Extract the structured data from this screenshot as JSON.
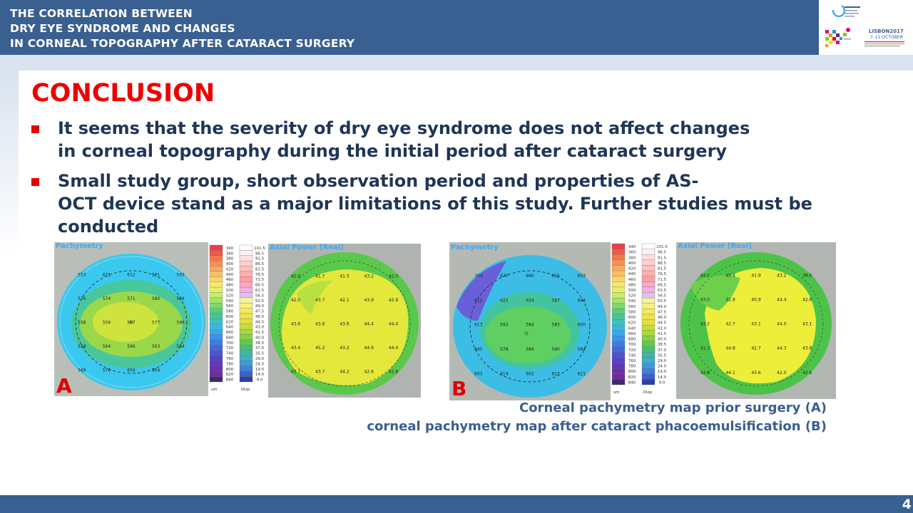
{
  "header": {
    "title_lines": [
      "THE CORRELATION BETWEEN",
      "DRY EYE SYNDROME AND CHANGES",
      "IN CORNEAL TOPOGRAPHY AFTER CATARACT SURGERY"
    ],
    "logo": {
      "lisbon": "LISBON2017",
      "dates": "7–11 OCTOBER"
    }
  },
  "main": {
    "heading": "CONCLUSION",
    "bullets": [
      {
        "lines": [
          "It seems that the severity of dry eye syndrome does not affect changes",
          "in corneal topography during the initial period after cataract surgery"
        ]
      },
      {
        "lines": [
          "Small study group, short observation period and properties of AS-",
          "OCT device stand as a major limitations of this study. Further studies must be",
          "conducted"
        ]
      }
    ]
  },
  "figures": {
    "panel_a": {
      "letter": "A",
      "pachymetry_label": "Pachymetry",
      "axial_label": "Axial Power [Real]",
      "unit_um": "um",
      "unit_diop": "Diop",
      "pachy_values": [
        "553",
        "631",
        "612",
        "591",
        "592",
        "576",
        "574",
        "571",
        "580",
        "564",
        "558",
        "559",
        "567",
        "577",
        "596",
        "558",
        "564",
        "566",
        "563",
        "584",
        "588",
        "576",
        "604",
        "604"
      ],
      "axial_values": [
        "42.0",
        "41.7",
        "41.5",
        "43.2",
        "42.0",
        "42.0",
        "43.7",
        "42.1",
        "43.9",
        "42.9",
        "43.6",
        "43.6",
        "43.6",
        "44.4",
        "44.4",
        "43.4",
        "45.2",
        "43.2",
        "44.9",
        "44.4",
        "43.7",
        "43.7",
        "44.2",
        "42.6",
        "42.8"
      ]
    },
    "panel_b": {
      "letter": "B",
      "pachymetry_label": "Pachymetry",
      "axial_label": "Axial Power [Real]",
      "unit_um": "um",
      "unit_diop": "Diop",
      "pachy_values": [
        "703",
        "670",
        "660",
        "656",
        "603",
        "612",
        "622",
        "634",
        "587",
        "644",
        "613",
        "592",
        "584",
        "583",
        "600",
        "645",
        "578",
        "584",
        "590",
        "584",
        "603",
        "614",
        "602",
        "623",
        "621"
      ],
      "axial_values": [
        "44.2",
        "43.4",
        "41.9",
        "43.2",
        "38.6",
        "43.0",
        "42.8",
        "40.9",
        "44.4",
        "42.6",
        "43.2",
        "42.7",
        "43.1",
        "44.0",
        "43.1",
        "41.3",
        "44.8",
        "42.7",
        "44.3",
        "43.8",
        "42.8",
        "44.1",
        "43.6",
        "42.0",
        "42.6"
      ]
    },
    "scale_pachy": [
      "340",
      "360",
      "380",
      "400",
      "420",
      "440",
      "460",
      "480",
      "500",
      "520",
      "540",
      "560",
      "580",
      "600",
      "620",
      "640",
      "660",
      "680",
      "700",
      "720",
      "740",
      "760",
      "780",
      "800",
      "820",
      "840"
    ],
    "scale_axial": [
      "101.5",
      "96.5",
      "91.5",
      "86.5",
      "81.5",
      "76.5",
      "71.5",
      "66.5",
      "61.5",
      "56.5",
      "50.5",
      "49.0",
      "47.5",
      "46.0",
      "44.5",
      "43.0",
      "41.5",
      "40.0",
      "38.5",
      "37.0",
      "35.5",
      "29.0",
      "24.0",
      "19.0",
      "14.0",
      "9.0"
    ],
    "captions": [
      "Corneal pachymetry map prior surgery (A)",
      "corneal pachymetry map after cataract phacoemulsification (B)"
    ]
  },
  "footer": {
    "page_number": "4"
  },
  "colors": {
    "header_bg": "#3a5f91",
    "heading_red": "#ee0000",
    "body_text": "#1f3657",
    "caption_text": "#3a5f91"
  }
}
